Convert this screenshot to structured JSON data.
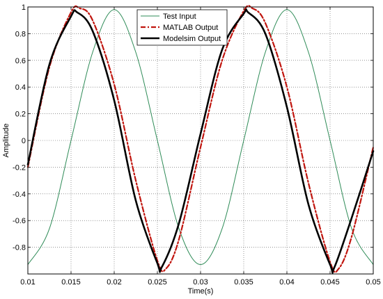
{
  "chart_data": {
    "type": "line",
    "title": "",
    "xlabel": "Time(s)",
    "ylabel": "Amplitude",
    "xlim": [
      0.01,
      0.05
    ],
    "ylim": [
      -1,
      1
    ],
    "grid": true,
    "legend_position": "top-center",
    "x_ticks": [
      0.01,
      0.015,
      0.02,
      0.025,
      0.03,
      0.035,
      0.04,
      0.045,
      0.05
    ],
    "x_tick_labels": [
      "0.01",
      "0.015",
      "0.02",
      "0.025",
      "0.03",
      "0.035",
      "0.04",
      "0.045",
      "0.05"
    ],
    "y_ticks": [
      -0.8,
      -0.6,
      -0.4,
      -0.2,
      0,
      0.2,
      0.4,
      0.6,
      0.8,
      1
    ],
    "y_tick_labels": [
      "-0.8",
      "-0.6",
      "-0.4",
      "-0.2",
      "0",
      "0.2",
      "0.4",
      "0.6",
      "0.8",
      "1"
    ],
    "series": [
      {
        "name": "Test Input",
        "color": "#2e8b57",
        "style": "solid-thin",
        "x": [
          0.01,
          0.0125,
          0.015,
          0.0175,
          0.02,
          0.0225,
          0.025,
          0.0275,
          0.03,
          0.0325,
          0.035,
          0.0375,
          0.04,
          0.0425,
          0.045,
          0.0475,
          0.05
        ],
        "y": [
          -0.93,
          -0.66,
          0.0,
          0.66,
          0.98,
          0.66,
          0.0,
          -0.66,
          -0.93,
          -0.66,
          0.0,
          0.66,
          0.98,
          0.66,
          0.0,
          -0.66,
          -0.93
        ]
      },
      {
        "name": "MATLAB Output",
        "color": "#c0150e",
        "style": "dash-dot",
        "x": [
          0.01,
          0.0125,
          0.015,
          0.016,
          0.0175,
          0.02,
          0.0225,
          0.025,
          0.026,
          0.0275,
          0.03,
          0.0325,
          0.035,
          0.036,
          0.0375,
          0.04,
          0.0425,
          0.045,
          0.046,
          0.0475,
          0.05
        ],
        "y": [
          -0.2,
          0.55,
          0.96,
          0.99,
          0.9,
          0.42,
          -0.3,
          -0.9,
          -0.96,
          -0.74,
          -0.05,
          0.6,
          0.97,
          0.99,
          0.88,
          0.4,
          -0.32,
          -0.91,
          -0.96,
          -0.72,
          -0.05
        ]
      },
      {
        "name": "Modelsim Output",
        "color": "#000000",
        "style": "solid-thick",
        "x": [
          0.01,
          0.0125,
          0.015,
          0.0157,
          0.0175,
          0.02,
          0.0225,
          0.025,
          0.0255,
          0.0275,
          0.03,
          0.0325,
          0.035,
          0.0355,
          0.0375,
          0.04,
          0.0425,
          0.045,
          0.0455,
          0.0475,
          0.05
        ],
        "y": [
          -0.18,
          0.57,
          0.93,
          0.96,
          0.82,
          0.3,
          -0.45,
          -0.92,
          -0.95,
          -0.62,
          0.05,
          0.68,
          0.95,
          0.96,
          0.8,
          0.25,
          -0.48,
          -0.93,
          -0.95,
          -0.58,
          -0.08
        ]
      }
    ]
  }
}
